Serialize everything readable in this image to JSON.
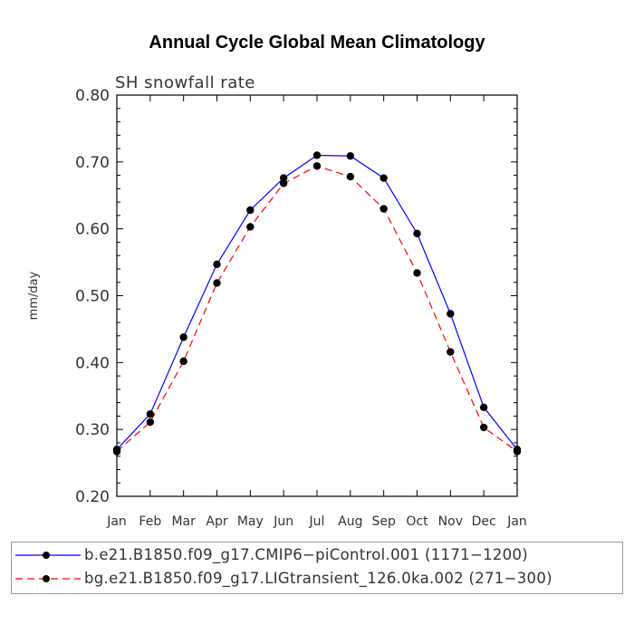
{
  "chart_data": {
    "type": "line",
    "title": "Annual Cycle Global Mean Climatology",
    "subtitle": "SH snowfall rate",
    "ylabel": "mm/day",
    "xlabel": "",
    "ylim": [
      0.2,
      0.8
    ],
    "yticks": [
      "0.20",
      "0.30",
      "0.40",
      "0.50",
      "0.60",
      "0.70",
      "0.80"
    ],
    "categories": [
      "Jan",
      "Feb",
      "Mar",
      "Apr",
      "May",
      "Jun",
      "Jul",
      "Aug",
      "Sep",
      "Oct",
      "Nov",
      "Dec",
      "Jan"
    ],
    "series": [
      {
        "name": "b.e21.B1850.f09_g17.CMIP6−piControl.001 (1171−1200)",
        "color": "#0000ff",
        "dash": "solid",
        "values": [
          0.27,
          0.323,
          0.438,
          0.547,
          0.628,
          0.676,
          0.71,
          0.709,
          0.676,
          0.593,
          0.473,
          0.333,
          0.27
        ]
      },
      {
        "name": "bg.e21.B1850.f09_g17.LIGtransient_126.0ka.002 (271−300)",
        "color": "#ff0000",
        "dash": "dashed",
        "values": [
          0.267,
          0.311,
          0.402,
          0.519,
          0.603,
          0.668,
          0.694,
          0.678,
          0.63,
          0.534,
          0.416,
          0.303,
          0.267
        ]
      }
    ],
    "legend_position": "bottom"
  }
}
